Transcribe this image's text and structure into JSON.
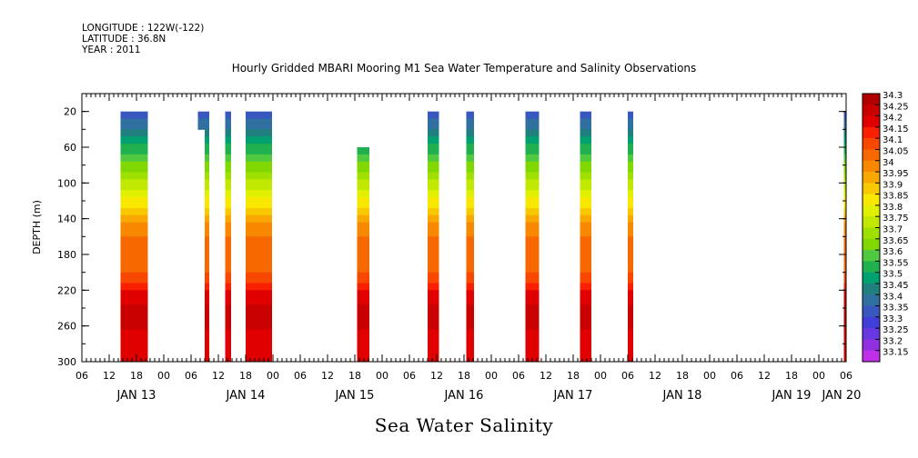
{
  "header": {
    "longitude": "LONGITUDE : 122W(-122)",
    "latitude": "LATITUDE : 36.8N",
    "year": "YEAR : 2011"
  },
  "title": "Hourly Gridded MBARI Mooring M1 Sea Water Temperature and Salinity Observations",
  "footer": "Sea Water Salinity",
  "chart_data": {
    "type": "heatmap",
    "title": "Hourly Gridded MBARI Mooring M1 Sea Water Temperature and Salinity Observations",
    "ylabel": "DEPTH (m)",
    "xlabel": "",
    "variable": "Sea Water Salinity",
    "x_range_hours": [
      0,
      168
    ],
    "x_range_label": [
      "JAN 13 06",
      "JAN 20 06"
    ],
    "y_range": [
      300,
      0
    ],
    "y_inverted": true,
    "y_ticks": [
      20,
      60,
      100,
      140,
      180,
      220,
      260,
      300
    ],
    "x_tick_labels": [
      "06",
      "12",
      "18",
      "00",
      "06",
      "12",
      "18",
      "00",
      "06",
      "12",
      "18",
      "00",
      "06",
      "12",
      "18",
      "00",
      "06",
      "12",
      "18",
      "00",
      "06",
      "12",
      "18",
      "00",
      "06",
      "12",
      "18",
      "00",
      "06"
    ],
    "day_labels": [
      {
        "label": "JAN 13",
        "hour": 12
      },
      {
        "label": "JAN 14",
        "hour": 36
      },
      {
        "label": "JAN 15",
        "hour": 60
      },
      {
        "label": "JAN 16",
        "hour": 84
      },
      {
        "label": "JAN 17",
        "hour": 108
      },
      {
        "label": "JAN 18",
        "hour": 132
      },
      {
        "label": "JAN 19",
        "hour": 156
      },
      {
        "label": "JAN 20",
        "hour": 167
      }
    ],
    "colorbar_levels": [
      "34.3",
      "34.25",
      "34.2",
      "34.15",
      "34.1",
      "34.05",
      "34",
      "33.95",
      "33.9",
      "33.85",
      "33.8",
      "33.75",
      "33.7",
      "33.65",
      "33.6",
      "33.55",
      "33.5",
      "33.45",
      "33.4",
      "33.35",
      "33.3",
      "33.25",
      "33.2",
      "33.15"
    ],
    "colorbar_colors": [
      "#b00000",
      "#c80000",
      "#e00000",
      "#f82000",
      "#f84800",
      "#f86800",
      "#f88800",
      "#f8a800",
      "#f8c800",
      "#f8e800",
      "#e0f000",
      "#c0e800",
      "#a0e000",
      "#80d800",
      "#50c840",
      "#20b050",
      "#00a070",
      "#208080",
      "#3070a0",
      "#3858c0",
      "#4040d8",
      "#6838e0",
      "#9030e0",
      "#c030e8"
    ],
    "profile_depths": [
      20,
      40,
      60,
      80,
      100,
      120,
      140,
      160,
      180,
      200,
      220,
      240,
      260,
      280,
      300
    ],
    "profile_values": [
      33.34,
      33.46,
      33.56,
      33.66,
      33.76,
      33.86,
      33.98,
      34.05,
      34.06,
      34.09,
      34.2,
      34.27,
      34.26,
      34.22,
      34.22
    ],
    "data_segments": [
      {
        "start": 8.5,
        "end": 14.5,
        "top_depth": 20
      },
      {
        "start": 25.5,
        "end": 27.0,
        "top_depth": 20,
        "note": "step 20-40m"
      },
      {
        "start": 27.0,
        "end": 28.0,
        "top_depth": 20
      },
      {
        "start": 31.5,
        "end": 32.8,
        "top_depth": 20
      },
      {
        "start": 36.0,
        "end": 41.8,
        "top_depth": 20
      },
      {
        "start": 60.5,
        "end": 63.2,
        "top_depth": 20,
        "note": "begins at 60m for first part"
      },
      {
        "start": 76.0,
        "end": 78.5,
        "top_depth": 20
      },
      {
        "start": 84.5,
        "end": 86.2,
        "top_depth": 20
      },
      {
        "start": 97.5,
        "end": 100.5,
        "top_depth": 20
      },
      {
        "start": 109.5,
        "end": 112.0,
        "top_depth": 20
      },
      {
        "start": 120.0,
        "end": 121.2,
        "top_depth": 20
      },
      {
        "start": 167.5,
        "end": 168,
        "top_depth": 20
      }
    ]
  }
}
